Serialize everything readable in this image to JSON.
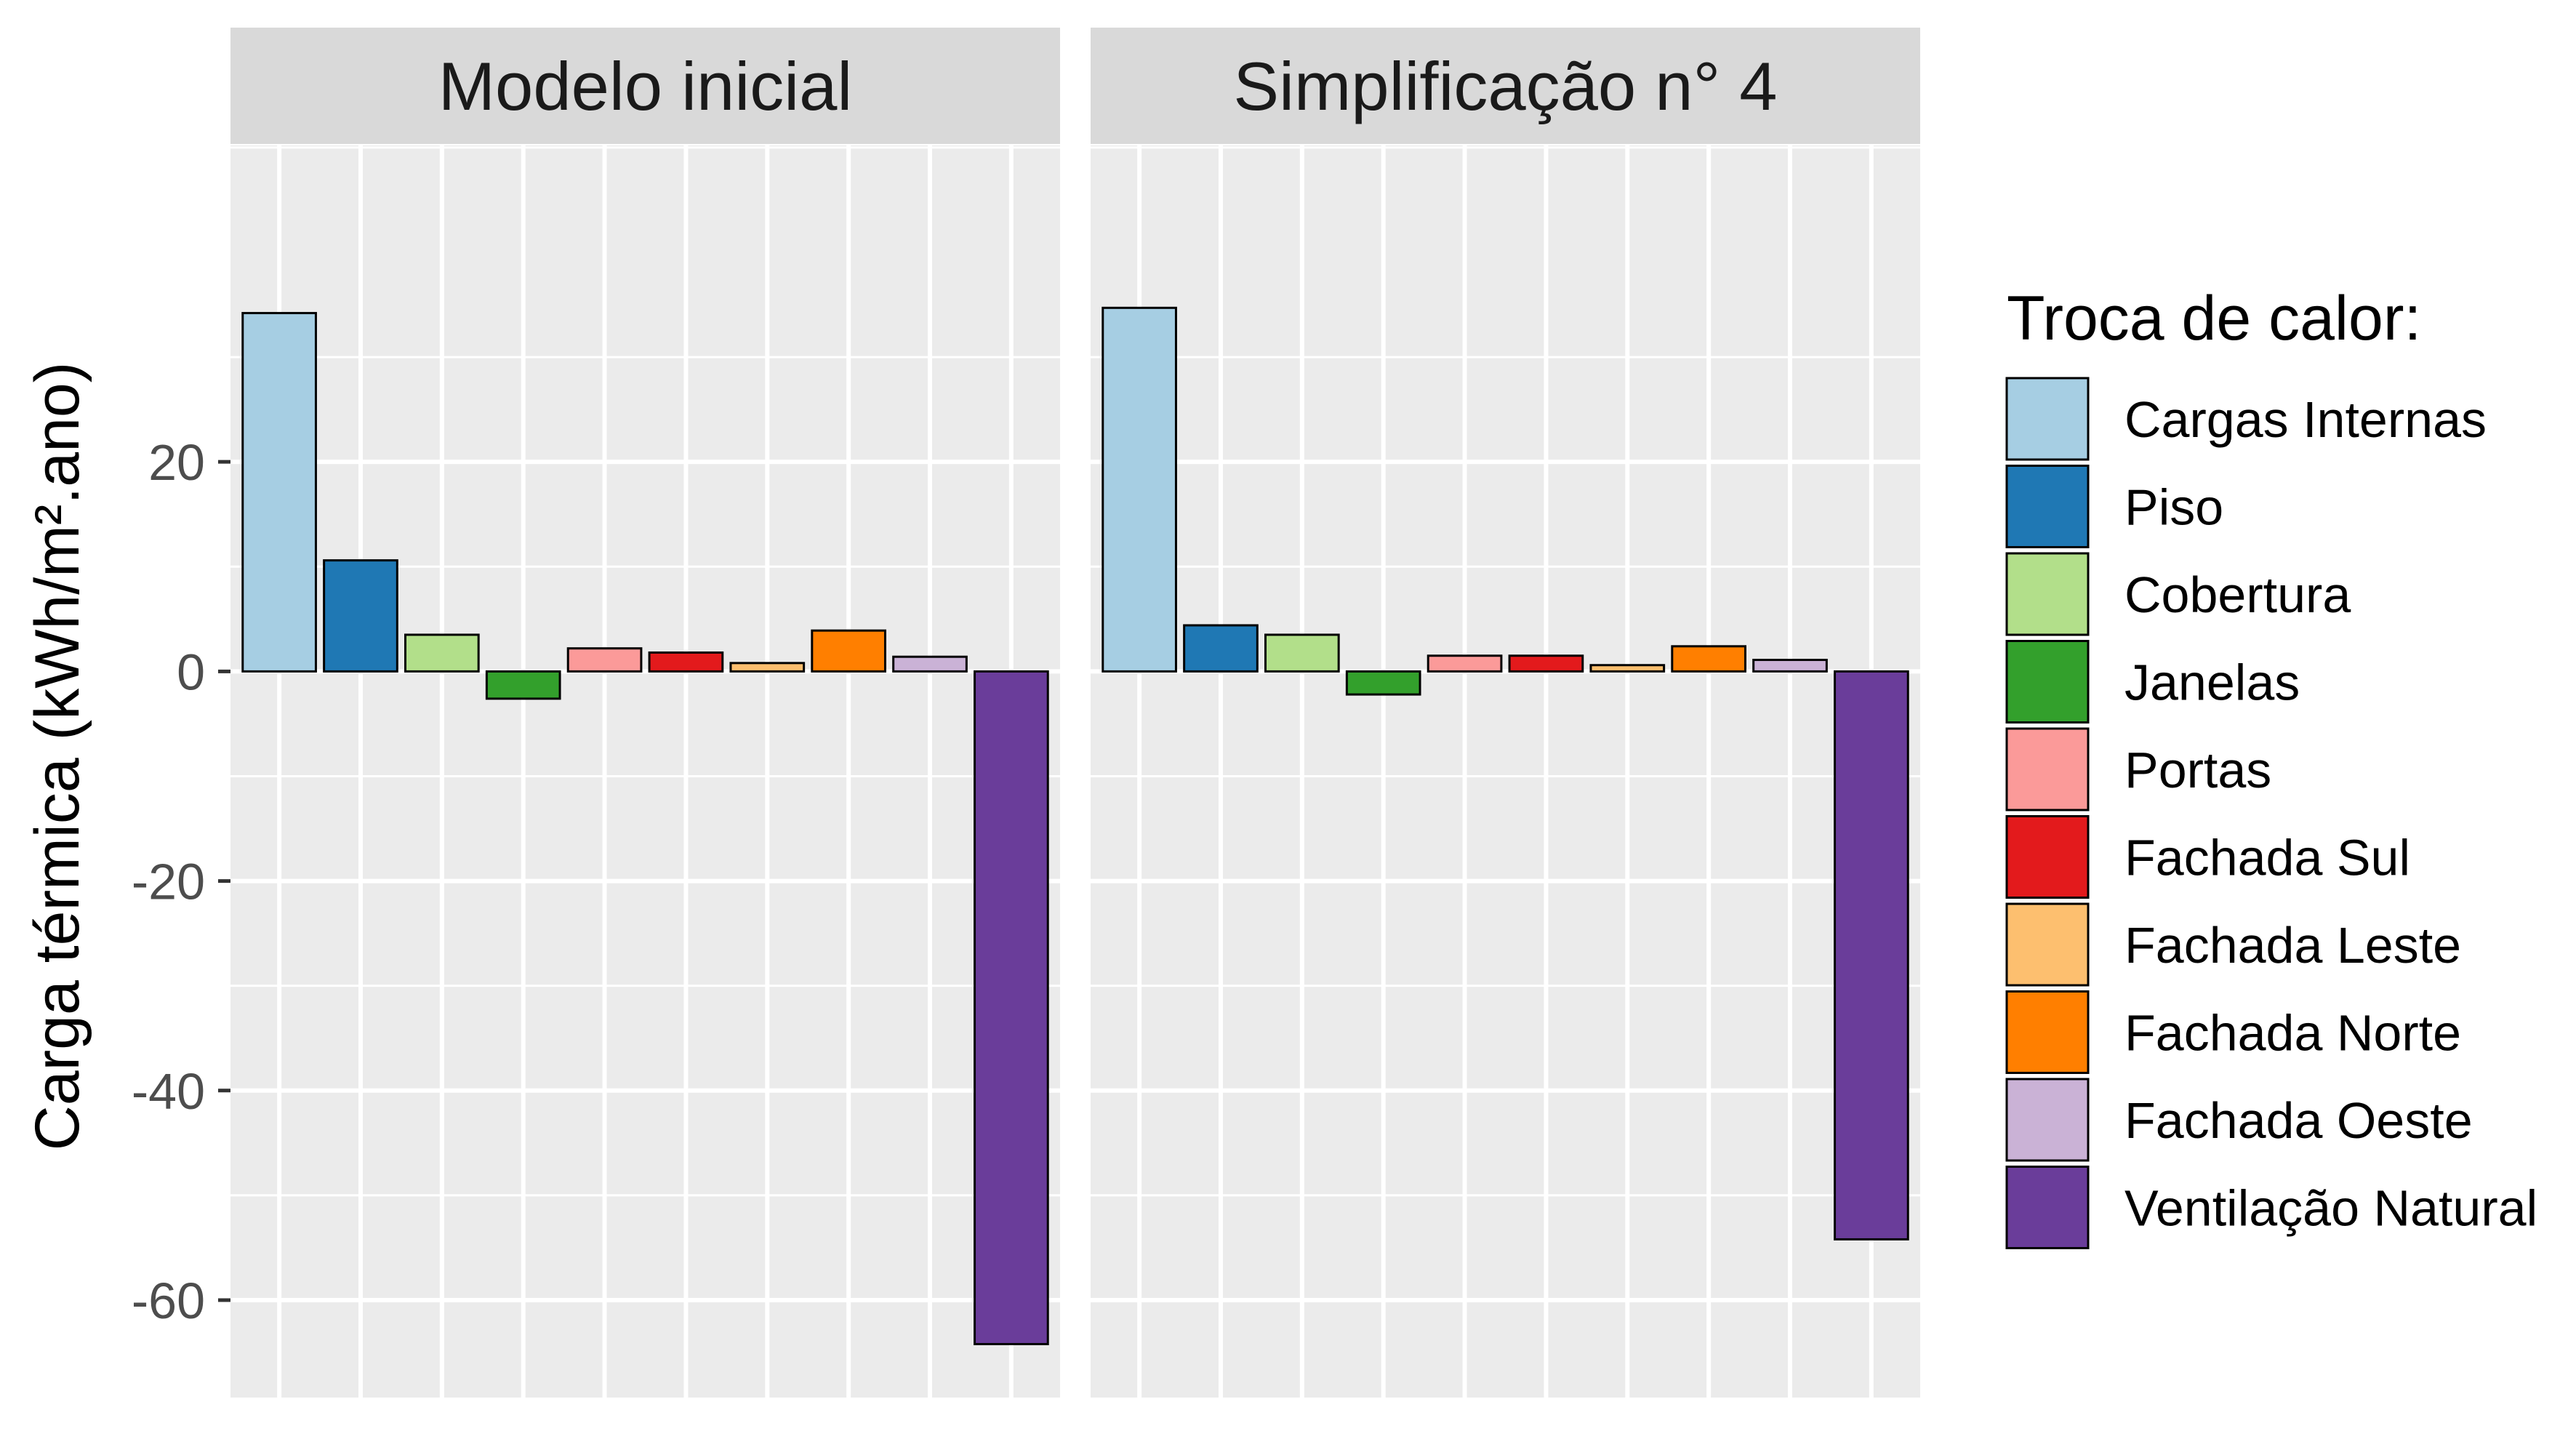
{
  "chart_data": {
    "type": "bar",
    "ylabel": "Carga térmica (kWh/m².ano)",
    "ylim": [
      -69.3,
      50.2
    ],
    "yticks": [
      20,
      0,
      -20,
      -40,
      -60
    ],
    "ytick_labels": [
      "20",
      "0",
      "-20",
      "-40",
      "-60"
    ],
    "xlabel": "",
    "grid": true,
    "legend": {
      "title": "Troca de calor:",
      "placement": "right"
    },
    "categories": [
      "Cargas Internas",
      "Piso",
      "Cobertura",
      "Janelas",
      "Portas",
      "Fachada Sul",
      "Fachada Leste",
      "Fachada Norte",
      "Fachada Oeste",
      "Ventilação Natural"
    ],
    "colors": [
      "#A6CEE3",
      "#1F78B4",
      "#B2DF8A",
      "#33A02C",
      "#FB9A99",
      "#E31A1C",
      "#FDBF6F",
      "#FF7F00",
      "#CAB2D6",
      "#6A3D9A"
    ],
    "panels": [
      {
        "title": "Modelo inicial",
        "values": [
          34.2,
          10.6,
          3.5,
          -2.6,
          2.2,
          1.8,
          0.8,
          3.9,
          1.4,
          -64.2
        ]
      },
      {
        "title": "Simplificação n° 4",
        "values": [
          34.7,
          4.4,
          3.5,
          -2.2,
          1.5,
          1.5,
          0.6,
          2.4,
          1.1,
          -54.2
        ]
      }
    ]
  }
}
